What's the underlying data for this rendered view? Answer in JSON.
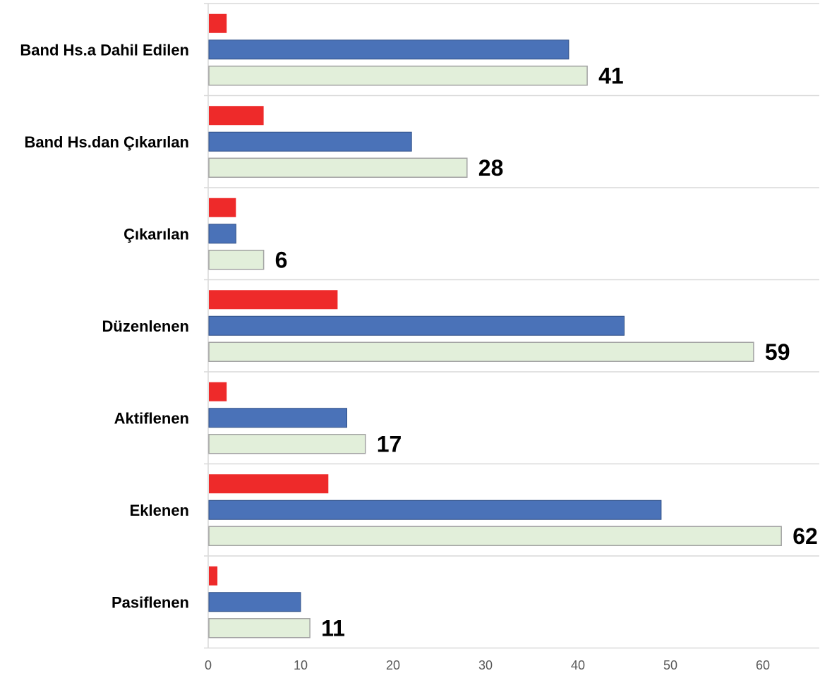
{
  "chart_data": {
    "type": "bar",
    "orientation": "horizontal",
    "categories": [
      "Band Hs.a Dahil Edilen",
      "Band Hs.dan Çıkarılan",
      "Çıkarılan",
      "Düzenlenen",
      "Aktiflenen",
      "Eklenen",
      "Pasiflenen"
    ],
    "series": [
      {
        "values": [
          2,
          6,
          3,
          14,
          2,
          13,
          1
        ],
        "color": "#ee2a2a"
      },
      {
        "values": [
          39,
          22,
          3,
          45,
          15,
          49,
          10
        ],
        "color": "#4a72b8"
      },
      {
        "values": [
          41,
          28,
          6,
          59,
          17,
          62,
          11
        ],
        "color": "#e2efda",
        "border": "#a3a3a3",
        "data_labels": [
          "41",
          "28",
          "6",
          "59",
          "17",
          "62",
          "11"
        ]
      }
    ],
    "xlim": [
      0,
      65
    ],
    "x_ticks": [
      0,
      10,
      20,
      30,
      40,
      50,
      60
    ],
    "grid": "horizontal separators between categories",
    "legend": "none"
  }
}
